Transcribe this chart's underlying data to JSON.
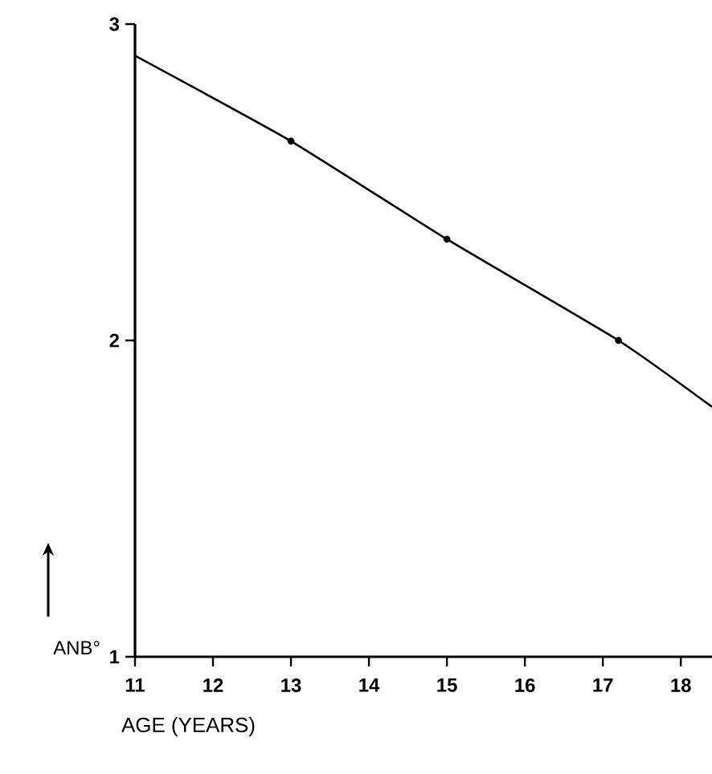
{
  "chart_data": {
    "type": "line",
    "xlabel": "AGE (YEARS)",
    "ylabel": "ANB°",
    "xlim": [
      11,
      18.4
    ],
    "ylim": [
      1,
      3
    ],
    "xticks": [
      11,
      12,
      13,
      14,
      15,
      16,
      17,
      18
    ],
    "yticks": [
      1,
      2,
      3
    ],
    "grid": false,
    "series": [
      {
        "color": "#000000",
        "marker": "none",
        "x": [
          11,
          13,
          15,
          17.2,
          18.4
        ],
        "values": [
          2.9,
          2.63,
          2.32,
          2.0,
          1.79
        ]
      },
      {
        "type": "scatter",
        "color": "#000000",
        "marker": "circle",
        "x": [
          13,
          15,
          17.2
        ],
        "values": [
          2.63,
          2.32,
          2.0
        ]
      }
    ]
  }
}
